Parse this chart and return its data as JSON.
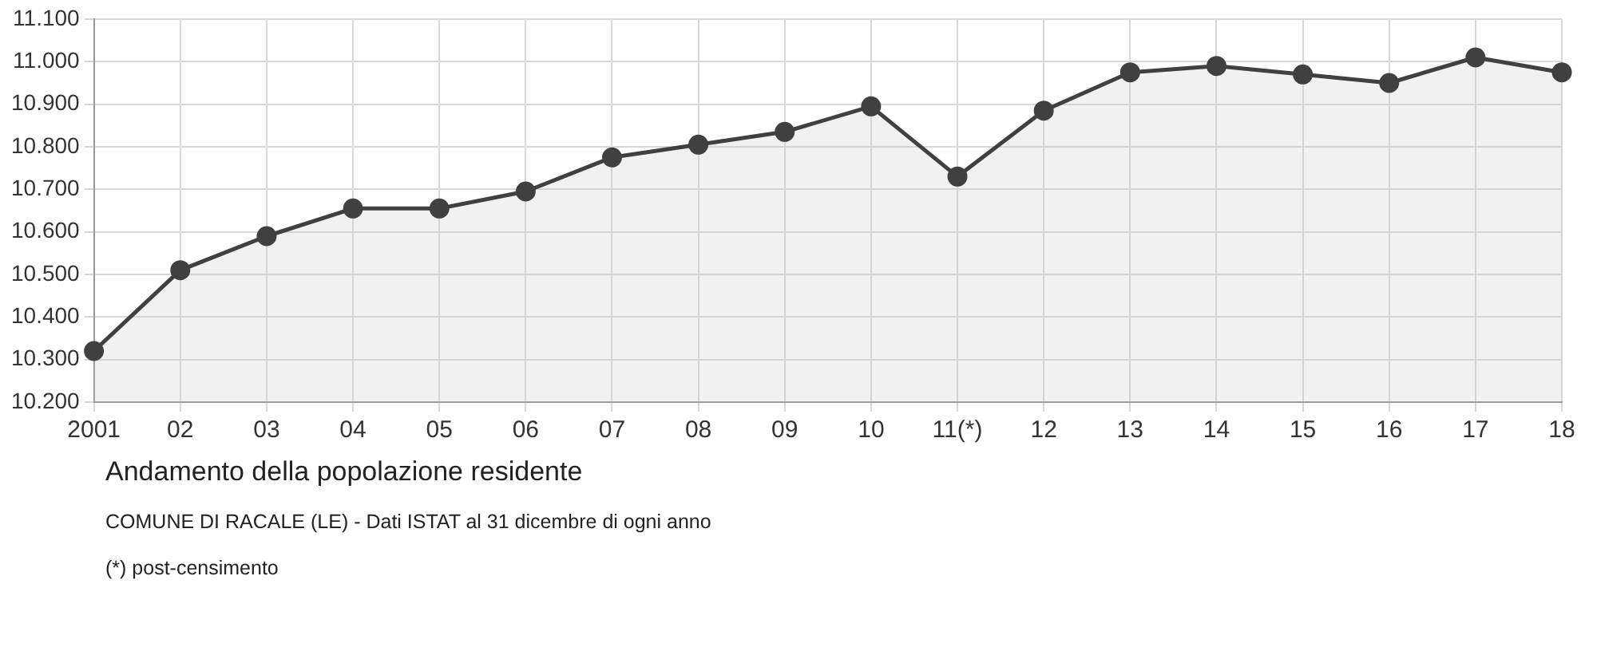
{
  "chart_data": {
    "type": "area",
    "title": "Andamento della popolazione residente",
    "annotations": [
      "COMUNE DI RACALE (LE) - Dati ISTAT al 31 dicembre di ogni anno",
      "(*) post-censimento"
    ],
    "categories": [
      "2001",
      "02",
      "03",
      "04",
      "05",
      "06",
      "07",
      "08",
      "09",
      "10",
      "11(*)",
      "12",
      "13",
      "14",
      "15",
      "16",
      "17",
      "18"
    ],
    "series": [
      {
        "color": "#404040",
        "values": [
          10320,
          10510,
          10590,
          10655,
          10655,
          10695,
          10775,
          10805,
          10835,
          10895,
          10730,
          10885,
          10975,
          10990,
          10970,
          10950,
          11010,
          10975
        ]
      }
    ],
    "ylim": [
      10200,
      11100
    ],
    "yticks": [
      {
        "value": 10200,
        "label": "10.200"
      },
      {
        "value": 10300,
        "label": "10.300"
      },
      {
        "value": 10400,
        "label": "10.400"
      },
      {
        "value": 10500,
        "label": "10.500"
      },
      {
        "value": 10600,
        "label": "10.600"
      },
      {
        "value": 10700,
        "label": "10.700"
      },
      {
        "value": 10800,
        "label": "10.800"
      },
      {
        "value": 10900,
        "label": "10.900"
      },
      {
        "value": 11000,
        "label": "11.000"
      },
      {
        "value": 11100,
        "label": "11.100"
      }
    ],
    "grid": true,
    "legend": false,
    "marker": "circle",
    "line_style": "solid"
  }
}
